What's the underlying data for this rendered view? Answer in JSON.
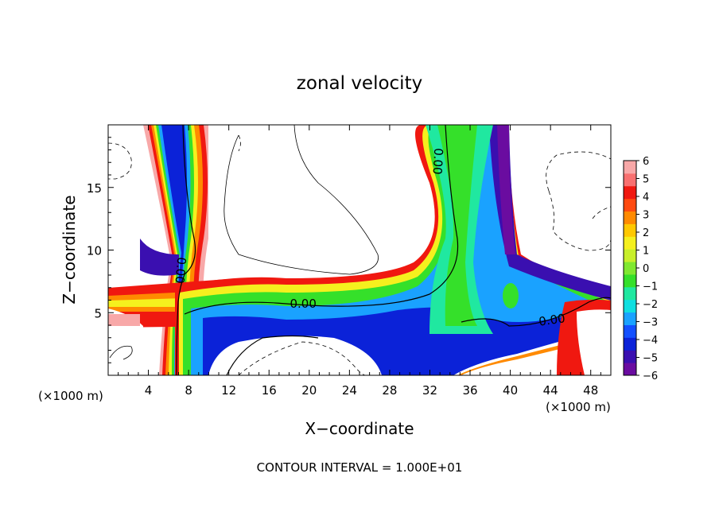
{
  "chart_data": {
    "type": "heatmap",
    "title": "zonal velocity",
    "xlabel": "X−coordinate",
    "ylabel": "Z−coordinate",
    "x_unit": "(×1000 m)",
    "y_unit": "(×1000 m)",
    "footer": "CONTOUR INTERVAL = 1.000E+01",
    "xlim": [
      0,
      50
    ],
    "ylim": [
      0,
      20
    ],
    "xticks": [
      4,
      8,
      12,
      16,
      20,
      24,
      28,
      32,
      36,
      40,
      44,
      48
    ],
    "yticks": [
      5,
      10,
      15
    ],
    "contour_label": "0.00",
    "colorbar": {
      "range": [
        -6,
        6
      ],
      "tick_values": [
        6,
        5,
        4,
        3,
        2,
        1,
        0,
        -1,
        -2,
        -3,
        -4,
        -5,
        -6
      ],
      "tick_labels": [
        "6",
        "5",
        "4",
        "3",
        "2",
        "1",
        "0",
        "−1",
        "−2",
        "−3",
        "−4",
        "−5",
        "−6"
      ],
      "colors": [
        "#6a0ca0",
        "#3a0fb0",
        "#0b22d8",
        "#1350ff",
        "#1aa2ff",
        "#10dfe0",
        "#20e8a0",
        "#35e02a",
        "#80e830",
        "#c8ef2a",
        "#f5f01e",
        "#ffc800",
        "#ff8a00",
        "#ff4a10",
        "#f01810",
        "#f87070",
        "#f8a8a8"
      ]
    }
  }
}
